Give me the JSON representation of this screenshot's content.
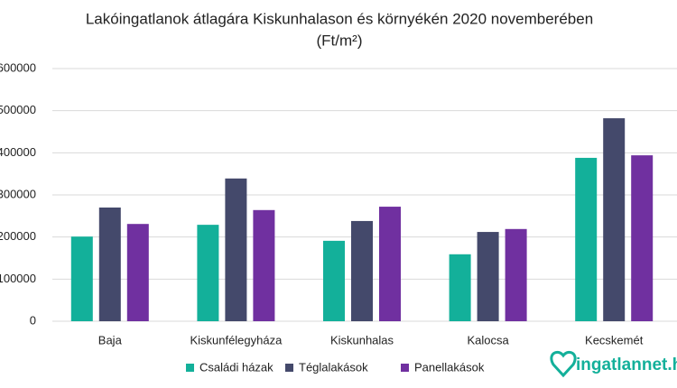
{
  "chart_data": {
    "type": "bar",
    "title": "Lakóingatlanok átlagára Kiskunhalason és környékén 2020 novemberében",
    "subtitle": "(Ft/m²)",
    "categories": [
      "Baja",
      "Kiskunfélegyháza",
      "Kiskunhalas",
      "Kalocsa",
      "Kecskemét"
    ],
    "series": [
      {
        "name": "Családi házak",
        "color": "#13b09a",
        "values": [
          201000,
          229000,
          191000,
          159000,
          388000
        ]
      },
      {
        "name": "Téglalakások",
        "color": "#44496b",
        "values": [
          270000,
          339000,
          238000,
          212000,
          482000
        ]
      },
      {
        "name": "Panellakások",
        "color": "#7030a0",
        "values": [
          231000,
          264000,
          272000,
          219000,
          394000
        ]
      }
    ],
    "ylim": [
      0,
      600000
    ],
    "yticks": [
      0,
      100000,
      200000,
      300000,
      400000,
      500000,
      600000
    ],
    "grid": true,
    "legend": "bottom",
    "logo": "ingatlannet.hu"
  }
}
